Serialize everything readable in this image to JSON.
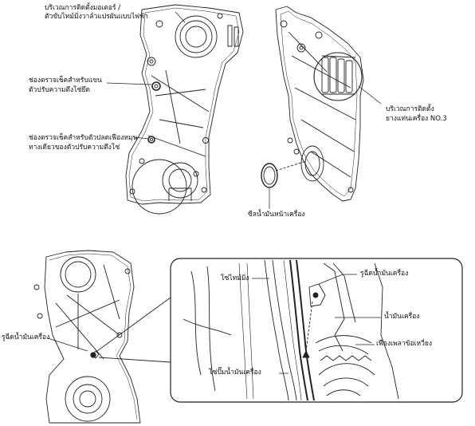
{
  "labels": {
    "motor_area_1": "บริเวณการติดตั้งมอเตอร์ /",
    "motor_area_2": "ตัวขับไทม์มิ่งวาล์วแปรผันแบบไฟฟ้า",
    "chain_check_1": "ช่องตรวจเช็คสำหรับแขน",
    "chain_check_2": "ตัวปรับความตึงโซ่ยึด",
    "lock_check_1": "ช่องตรวจเช็คสำหรับตัวปลดเฟืองหมุน",
    "lock_check_2": "ทางเดียวของตัวปรับความตึงโซ่",
    "mount_area_1": "บริเวณการติดตั้ง",
    "mount_area_2": "ยางแท่นเครื่อง NO.3",
    "front_oil_seal": "ซีลน้ำมันหน้าเครื่อง",
    "oil_hole_left": "รูฉีดน้ำมันเครื่อง",
    "timing_chain": "โซ่ไทม์มิ่ง",
    "oil_hole_detail": "รูฉีดน้ำมันเครื่อง",
    "engine_oil": "น้ำมันเครื่อง",
    "crank_sprocket": "เฟืองเพลาข้อเหวี่ยง",
    "oil_pump_chain": "โซ่ปั๊มน้ำมันเครื่อง"
  }
}
